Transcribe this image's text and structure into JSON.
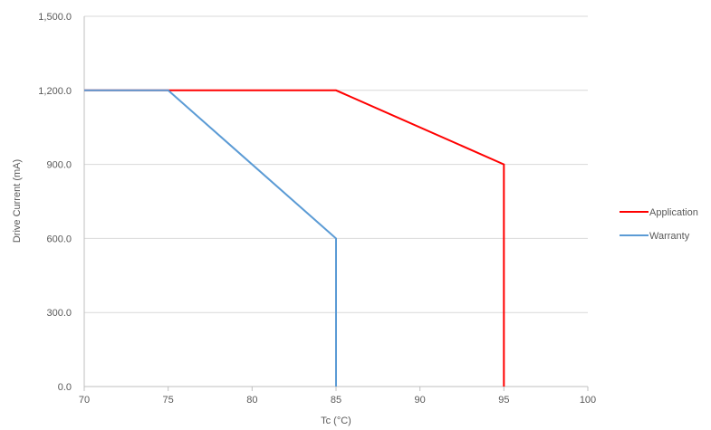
{
  "chart_data": {
    "type": "line",
    "title": "",
    "xlabel": "Tc (°C)",
    "ylabel": "Drive Current (mA)",
    "xlim": [
      70,
      100
    ],
    "ylim": [
      0,
      1500
    ],
    "x_ticks": [
      "70",
      "75",
      "80",
      "85",
      "90",
      "95",
      "100"
    ],
    "y_ticks": [
      "0.0",
      "300.0",
      "600.0",
      "900.0",
      "1,200.0",
      "1,500.0"
    ],
    "grid": true,
    "legend_position": "right",
    "series": [
      {
        "name": "Application",
        "color": "#ff0000",
        "points": [
          [
            70,
            1200
          ],
          [
            85,
            1200
          ],
          [
            95,
            900
          ],
          [
            95,
            0
          ]
        ]
      },
      {
        "name": "Warranty",
        "color": "#5b9bd5",
        "points": [
          [
            70,
            1200
          ],
          [
            75,
            1200
          ],
          [
            85,
            600
          ],
          [
            85,
            0
          ]
        ]
      }
    ]
  }
}
